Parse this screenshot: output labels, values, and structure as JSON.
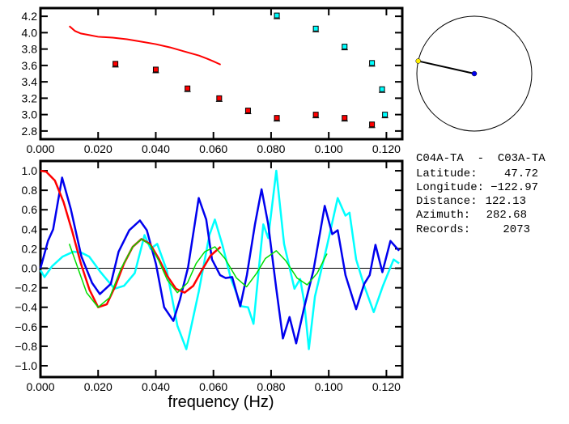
{
  "chart_data": [
    {
      "type": "scatter",
      "title": "",
      "xlabel": "",
      "ylabel": "",
      "xlim": [
        0,
        0.1255
      ],
      "ylim": [
        2.7,
        4.3
      ],
      "xticks": [
        "0.000",
        "0.020",
        "0.040",
        "0.060",
        "0.080",
        "0.100",
        "0.120"
      ],
      "yticks": [
        "2.8",
        "3.0",
        "3.2",
        "3.4",
        "3.6",
        "3.8",
        "4.0",
        "4.2"
      ],
      "line": {
        "name": "red-curve",
        "color": "#ff0000",
        "x": [
          0.01,
          0.011,
          0.012,
          0.014,
          0.017,
          0.02,
          0.025,
          0.03,
          0.035,
          0.04,
          0.045,
          0.05,
          0.055,
          0.058,
          0.06,
          0.0625
        ],
        "y": [
          4.08,
          4.05,
          4.02,
          3.99,
          3.97,
          3.95,
          3.94,
          3.92,
          3.89,
          3.86,
          3.82,
          3.77,
          3.72,
          3.68,
          3.65,
          3.61
        ]
      },
      "series": [
        {
          "name": "red-points",
          "color": "#ff0000",
          "x": [
            0.026,
            0.04,
            0.051,
            0.062,
            0.072,
            0.082,
            0.0955,
            0.1055,
            0.115
          ],
          "y": [
            3.62,
            3.55,
            3.32,
            3.2,
            3.05,
            2.96,
            3.0,
            2.96,
            2.88
          ]
        },
        {
          "name": "cyan-points",
          "color": "#00ffff",
          "x": [
            0.082,
            0.0955,
            0.1055,
            0.115,
            0.1185,
            0.1195
          ],
          "y": [
            4.21,
            4.05,
            3.83,
            3.63,
            3.31,
            3.0
          ]
        }
      ]
    },
    {
      "type": "line",
      "title": "",
      "xlabel": "frequency (Hz)",
      "ylabel": "",
      "xlim": [
        0,
        0.1255
      ],
      "ylim": [
        -1.116,
        1.1
      ],
      "xticks": [
        "0.000",
        "0.020",
        "0.040",
        "0.060",
        "0.080",
        "0.100",
        "0.120"
      ],
      "yticks": [
        "1.0",
        "0.8",
        "0.6",
        "0.4",
        "0.2",
        "0.0",
        "−0.2",
        "−0.4",
        "−0.6",
        "−0.8",
        "−1.0"
      ],
      "series": [
        {
          "name": "cyan",
          "color": "#00ffff",
          "x": [
            0,
            0.0014,
            0.004,
            0.0077,
            0.0114,
            0.0142,
            0.0169,
            0.0206,
            0.0234,
            0.0257,
            0.029,
            0.0327,
            0.0361,
            0.0382,
            0.0405,
            0.0438,
            0.0475,
            0.0506,
            0.0549,
            0.0586,
            0.0605,
            0.0632,
            0.066,
            0.0697,
            0.072,
            0.0739,
            0.0758,
            0.0773,
            0.079,
            0.0818,
            0.0845,
            0.0881,
            0.0901,
            0.0915,
            0.0931,
            0.0952,
            0.0994,
            0.1031,
            0.1058,
            0.1072,
            0.1095,
            0.1123,
            0.1156,
            0.1188,
            0.1225,
            0.1244
          ],
          "y": [
            -0.02,
            -0.09,
            0.02,
            0.12,
            0.17,
            0.16,
            0.12,
            -0.03,
            -0.13,
            -0.21,
            -0.18,
            -0.05,
            0.34,
            0.2,
            0.25,
            -0.02,
            -0.59,
            -0.83,
            -0.24,
            0.34,
            0.5,
            0.23,
            -0.1,
            -0.39,
            -0.4,
            -0.57,
            0.01,
            0.45,
            0.31,
            1.0,
            0.25,
            -0.21,
            -0.11,
            -0.35,
            -0.83,
            -0.29,
            0.23,
            0.72,
            0.54,
            0.57,
            0.09,
            -0.18,
            -0.45,
            -0.18,
            0.09,
            0.05
          ]
        },
        {
          "name": "blue",
          "color": "#0000ee",
          "x": [
            0,
            0.0026,
            0.0044,
            0.0075,
            0.0105,
            0.0142,
            0.0179,
            0.0206,
            0.0244,
            0.0271,
            0.0308,
            0.0345,
            0.0369,
            0.0401,
            0.0429,
            0.0461,
            0.0484,
            0.0512,
            0.0549,
            0.0575,
            0.0595,
            0.0623,
            0.0642,
            0.0665,
            0.0693,
            0.0716,
            0.0744,
            0.0767,
            0.079,
            0.0818,
            0.0841,
            0.0864,
            0.0887,
            0.0915,
            0.0947,
            0.0986,
            0.1012,
            0.1031,
            0.1058,
            0.1095,
            0.1123,
            0.1142,
            0.1162,
            0.1186,
            0.1214,
            0.1244
          ],
          "y": [
            0,
            0.28,
            0.4,
            0.93,
            0.61,
            0.12,
            -0.15,
            -0.265,
            -0.16,
            0.17,
            0.39,
            0.49,
            0.39,
            0.04,
            -0.4,
            -0.54,
            -0.32,
            0.01,
            0.72,
            0.5,
            0.09,
            -0.07,
            -0.1,
            -0.09,
            -0.39,
            -0.07,
            0.45,
            0.81,
            0.45,
            -0.21,
            -0.72,
            -0.5,
            -0.77,
            -0.4,
            -0.02,
            0.64,
            0.35,
            0.39,
            -0.07,
            -0.42,
            -0.16,
            -0.07,
            0.24,
            -0.04,
            0.28,
            0.18
          ]
        },
        {
          "name": "red",
          "color": "#ff0000",
          "x": [
            0,
            0.002,
            0.005,
            0.008,
            0.011,
            0.014,
            0.017,
            0.02,
            0.023,
            0.026,
            0.029,
            0.032,
            0.035,
            0.038,
            0.041,
            0.044,
            0.047,
            0.05,
            0.053,
            0.056,
            0.059,
            0.0625
          ],
          "y": [
            1.0,
            0.99,
            0.9,
            0.68,
            0.38,
            0.05,
            -0.22,
            -0.4,
            -0.37,
            -0.18,
            0.05,
            0.22,
            0.3,
            0.25,
            0.1,
            -0.08,
            -0.21,
            -0.25,
            -0.18,
            -0.02,
            0.13,
            0.22
          ]
        },
        {
          "name": "green",
          "color": "#00dd00",
          "x": [
            0.01,
            0.013,
            0.016,
            0.02,
            0.024,
            0.028,
            0.032,
            0.035,
            0.038,
            0.041,
            0.044,
            0.0475,
            0.051,
            0.054,
            0.057,
            0.0605,
            0.064,
            0.068,
            0.0715,
            0.075,
            0.078,
            0.0818,
            0.085,
            0.089,
            0.0925,
            0.096,
            0.0994
          ],
          "y": [
            0.25,
            0.0,
            -0.25,
            -0.4,
            -0.3,
            0.0,
            0.22,
            0.3,
            0.24,
            0.08,
            -0.12,
            -0.25,
            -0.15,
            0.05,
            0.17,
            0.22,
            0.1,
            -0.1,
            -0.19,
            -0.05,
            0.1,
            0.18,
            0.08,
            -0.1,
            -0.17,
            -0.05,
            0.15
          ]
        }
      ]
    }
  ],
  "station_info": {
    "pair": "C04A-TA  -  C03A-TA",
    "rows": [
      {
        "label": "Latitude:",
        "value": "47.72"
      },
      {
        "label": "Longitude:",
        "value": "−122.97"
      },
      {
        "label": "Distance:",
        "value": "122.13"
      },
      {
        "label": "Azimuth:",
        "value": "282.68"
      },
      {
        "label": "Records:",
        "value": "2073"
      }
    ],
    "azimuth_deg": 282.68,
    "colors": {
      "station": "#0000ee",
      "target": "#ffee00"
    }
  }
}
